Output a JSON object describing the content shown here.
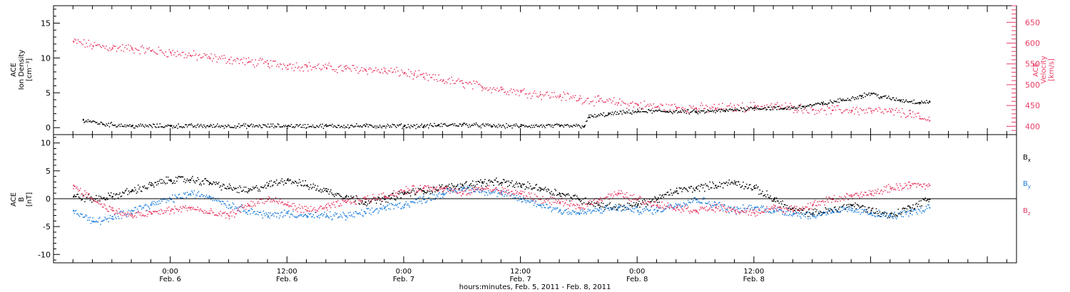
{
  "chart_data": [
    {
      "type": "scatter",
      "ylabel_lines": [
        "ACE",
        "Ion Density",
        "[cm⁻³]"
      ],
      "ylabel2_lines": [
        "ACE",
        "Velocity",
        "[km/s]"
      ],
      "ylim": [
        -1,
        17.5
      ],
      "y_ticks": [
        "0",
        "5",
        "10",
        "15"
      ],
      "y2lim": [
        380,
        690
      ],
      "y2_ticks": [
        "400",
        "450",
        "500",
        "550",
        "600",
        "650"
      ],
      "colors": {
        "density": "#000000",
        "velocity": "#e83c64"
      },
      "series": [
        {
          "role": "density",
          "axis": "left",
          "points": [
            [
              -9,
              1.2
            ],
            [
              -7,
              0.6
            ],
            [
              -4,
              0.3
            ],
            [
              0,
              0.3
            ],
            [
              4,
              0.3
            ],
            [
              8,
              0.3
            ],
            [
              12,
              0.3
            ],
            [
              16,
              0.3
            ],
            [
              20,
              0.3
            ],
            [
              24,
              0.3
            ],
            [
              26,
              0.3
            ],
            [
              27.5,
              0.4
            ],
            [
              30,
              0.5
            ],
            [
              33,
              0.3
            ],
            [
              36,
              0.3
            ],
            [
              40,
              0.3
            ],
            [
              42.5,
              0.3
            ],
            [
              43,
              1.6
            ],
            [
              45,
              2.0
            ],
            [
              48,
              2.4
            ],
            [
              51,
              2.4
            ],
            [
              54,
              2.3
            ],
            [
              57,
              2.5
            ],
            [
              60,
              2.9
            ],
            [
              63,
              2.8
            ],
            [
              65,
              3.1
            ],
            [
              67,
              3.5
            ],
            [
              69,
              4.0
            ],
            [
              71,
              4.6
            ],
            [
              72,
              5.0
            ],
            [
              73,
              4.5
            ],
            [
              75,
              4.0
            ],
            [
              77,
              3.7
            ],
            [
              78,
              3.8
            ]
          ]
        },
        {
          "role": "velocity",
          "axis": "right",
          "points": [
            [
              -10,
              605
            ],
            [
              -8,
              595
            ],
            [
              -6,
              590
            ],
            [
              -4,
              588
            ],
            [
              -2,
              583
            ],
            [
              0,
              578
            ],
            [
              2,
              572
            ],
            [
              4,
              566
            ],
            [
              6,
              562
            ],
            [
              8,
              556
            ],
            [
              10,
              552
            ],
            [
              12,
              548
            ],
            [
              14,
              545
            ],
            [
              16,
              542
            ],
            [
              18,
              540
            ],
            [
              20,
              538
            ],
            [
              22,
              534
            ],
            [
              24,
              530
            ],
            [
              25,
              525
            ],
            [
              26,
              520
            ],
            [
              28,
              512
            ],
            [
              30,
              505
            ],
            [
              32,
              496
            ],
            [
              34,
              490
            ],
            [
              36,
              484
            ],
            [
              38,
              478
            ],
            [
              40,
              474
            ],
            [
              42,
              468
            ],
            [
              44,
              462
            ],
            [
              46,
              458
            ],
            [
              48,
              453
            ],
            [
              50,
              448
            ],
            [
              52,
              446
            ],
            [
              54,
              445
            ],
            [
              56,
              445
            ],
            [
              58,
              446
            ],
            [
              60,
              449
            ],
            [
              62,
              449
            ],
            [
              64,
              446
            ],
            [
              66,
              442
            ],
            [
              68,
              440
            ],
            [
              70,
              440
            ],
            [
              72,
              438
            ],
            [
              74,
              436
            ],
            [
              76,
              432
            ],
            [
              77,
              420
            ],
            [
              78,
              415
            ]
          ]
        }
      ]
    },
    {
      "type": "scatter",
      "ylabel_lines": [
        "ACE",
        "B",
        "[nT]"
      ],
      "ylim": [
        -11.5,
        11.5
      ],
      "y_ticks": [
        "-10",
        "-5",
        "0",
        "5",
        "10"
      ],
      "legend_position": "right",
      "colors": {
        "Bx": "#000000",
        "By": "#1f7fdc",
        "Bz": "#e83c64"
      },
      "series": [
        {
          "name": "Bx",
          "name_sub": "x",
          "points": [
            [
              -10,
              0.5
            ],
            [
              -8,
              0
            ],
            [
              -6,
              0.5
            ],
            [
              -4,
              1.5
            ],
            [
              -2,
              2.5
            ],
            [
              0,
              3.5
            ],
            [
              2,
              3.5
            ],
            [
              4,
              3
            ],
            [
              6,
              2
            ],
            [
              8,
              1.5
            ],
            [
              10,
              2.5
            ],
            [
              12,
              3.5
            ],
            [
              14,
              2.5
            ],
            [
              16,
              1.5
            ],
            [
              18,
              0.5
            ],
            [
              20,
              -0.5
            ],
            [
              22,
              0
            ],
            [
              24,
              1
            ],
            [
              26,
              1.5
            ],
            [
              28,
              2
            ],
            [
              30,
              2.5
            ],
            [
              32,
              3
            ],
            [
              34,
              3
            ],
            [
              36,
              2.5
            ],
            [
              38,
              2
            ],
            [
              40,
              1
            ],
            [
              42,
              0
            ],
            [
              44,
              -1
            ],
            [
              46,
              -1.5
            ],
            [
              48,
              -1
            ],
            [
              50,
              0
            ],
            [
              52,
              1.5
            ],
            [
              54,
              2
            ],
            [
              56,
              2.5
            ],
            [
              58,
              3
            ],
            [
              60,
              2
            ],
            [
              62,
              0
            ],
            [
              64,
              -2
            ],
            [
              66,
              -2.5
            ],
            [
              68,
              -2
            ],
            [
              70,
              -1
            ],
            [
              72,
              -2
            ],
            [
              74,
              -3
            ],
            [
              76,
              -1.5
            ],
            [
              78,
              0
            ]
          ]
        },
        {
          "name": "By",
          "name_sub": "y",
          "points": [
            [
              -10,
              -2
            ],
            [
              -8,
              -4
            ],
            [
              -6,
              -3.5
            ],
            [
              -4,
              -2
            ],
            [
              -2,
              -1
            ],
            [
              0,
              0
            ],
            [
              2,
              1
            ],
            [
              4,
              0.5
            ],
            [
              6,
              -1
            ],
            [
              8,
              -2
            ],
            [
              10,
              -3
            ],
            [
              12,
              -2.5
            ],
            [
              14,
              -3
            ],
            [
              16,
              -3
            ],
            [
              18,
              -3
            ],
            [
              20,
              -2.5
            ],
            [
              22,
              -1.5
            ],
            [
              24,
              -1
            ],
            [
              26,
              0
            ],
            [
              28,
              1
            ],
            [
              30,
              2
            ],
            [
              32,
              1.5
            ],
            [
              34,
              1
            ],
            [
              36,
              0
            ],
            [
              38,
              -1
            ],
            [
              40,
              -2
            ],
            [
              42,
              -2.5
            ],
            [
              44,
              -2
            ],
            [
              46,
              -1.5
            ],
            [
              48,
              -2
            ],
            [
              50,
              -2
            ],
            [
              52,
              -1
            ],
            [
              54,
              0
            ],
            [
              56,
              -1
            ],
            [
              58,
              -2
            ],
            [
              60,
              -1.5
            ],
            [
              62,
              -2
            ],
            [
              64,
              -2.5
            ],
            [
              66,
              -3
            ],
            [
              68,
              -2
            ],
            [
              70,
              -2
            ],
            [
              72,
              -2.5
            ],
            [
              74,
              -3
            ],
            [
              76,
              -2.5
            ],
            [
              78,
              -1.5
            ]
          ]
        },
        {
          "name": "Bz",
          "name_sub": "z",
          "points": [
            [
              -10,
              2.5
            ],
            [
              -8,
              0
            ],
            [
              -6,
              -2
            ],
            [
              -4,
              -3
            ],
            [
              -2,
              -2.5
            ],
            [
              0,
              -2
            ],
            [
              2,
              -1.5
            ],
            [
              4,
              -2.5
            ],
            [
              6,
              -3
            ],
            [
              8,
              -1
            ],
            [
              10,
              0
            ],
            [
              12,
              -1
            ],
            [
              14,
              -2
            ],
            [
              16,
              -1.5
            ],
            [
              18,
              -0.5
            ],
            [
              20,
              0
            ],
            [
              22,
              0.5
            ],
            [
              24,
              1.5
            ],
            [
              26,
              2
            ],
            [
              28,
              2
            ],
            [
              30,
              1
            ],
            [
              32,
              2
            ],
            [
              34,
              1.5
            ],
            [
              36,
              1
            ],
            [
              38,
              0
            ],
            [
              40,
              -0.5
            ],
            [
              42,
              -1.5
            ],
            [
              44,
              0
            ],
            [
              46,
              1
            ],
            [
              48,
              0
            ],
            [
              50,
              -1
            ],
            [
              52,
              -1.5
            ],
            [
              54,
              -2
            ],
            [
              56,
              -1.5
            ],
            [
              58,
              -2
            ],
            [
              60,
              -2.5
            ],
            [
              62,
              -1.5
            ],
            [
              64,
              -2
            ],
            [
              66,
              -1
            ],
            [
              68,
              0
            ],
            [
              70,
              0.5
            ],
            [
              72,
              1
            ],
            [
              74,
              2
            ],
            [
              76,
              2.5
            ],
            [
              78,
              2.5
            ]
          ]
        }
      ]
    }
  ],
  "x_axis": {
    "xlim_hours": [
      -12,
      87
    ],
    "tick_labels": [
      {
        "hour": 0,
        "time": "0:00",
        "date": "Feb. 6"
      },
      {
        "hour": 12,
        "time": "12:00",
        "date": "Feb. 6"
      },
      {
        "hour": 24,
        "time": "0:00",
        "date": "Feb. 7"
      },
      {
        "hour": 36,
        "time": "12:00",
        "date": "Feb. 7"
      },
      {
        "hour": 48,
        "time": "0:00",
        "date": "Feb. 8"
      },
      {
        "hour": 60,
        "time": "12:00",
        "date": "Feb. 8"
      }
    ],
    "xlabel": "hours:minutes, Feb.  5, 2011 - Feb.  8, 2011"
  }
}
